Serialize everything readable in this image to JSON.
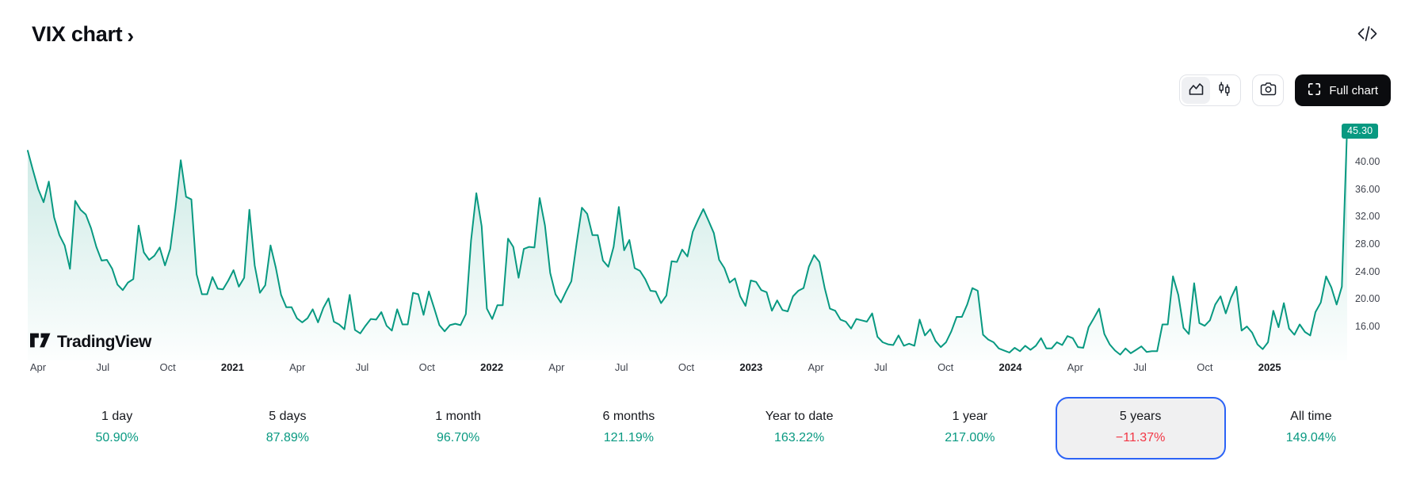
{
  "header": {
    "title": "VIX chart",
    "chevron": "›",
    "code_icon": "code-icon"
  },
  "toolbar": {
    "chart_type_options": [
      "area",
      "candles"
    ],
    "chart_type_selected": "area",
    "full_chart_label": "Full chart",
    "icons": [
      "area-chart-icon",
      "candlestick-icon",
      "camera-icon",
      "fullscreen-icon"
    ]
  },
  "watermark": {
    "brand": "TradingView"
  },
  "chart_data": {
    "type": "area",
    "symbol": "VIX",
    "period_shown": "5 years (Apr 2020 – Apr 2025), weekly points",
    "last_price_label": "45.30",
    "line_color": "#089981",
    "badge_color": "#089981",
    "ylim": [
      11.15,
      48.3
    ],
    "y_ticks": [
      {
        "label": "40.00",
        "value": 40
      },
      {
        "label": "36.00",
        "value": 36
      },
      {
        "label": "32.00",
        "value": 32
      },
      {
        "label": "28.00",
        "value": 28
      },
      {
        "label": "24.00",
        "value": 24
      },
      {
        "label": "20.00",
        "value": 20
      },
      {
        "label": "16.00",
        "value": 16
      }
    ],
    "x_ticks": [
      {
        "label": "Apr",
        "year": false
      },
      {
        "label": "Jul",
        "year": false
      },
      {
        "label": "Oct",
        "year": false
      },
      {
        "label": "2021",
        "year": true
      },
      {
        "label": "Apr",
        "year": false
      },
      {
        "label": "Jul",
        "year": false
      },
      {
        "label": "Oct",
        "year": false
      },
      {
        "label": "2022",
        "year": true
      },
      {
        "label": "Apr",
        "year": false
      },
      {
        "label": "Jul",
        "year": false
      },
      {
        "label": "Oct",
        "year": false
      },
      {
        "label": "2023",
        "year": true
      },
      {
        "label": "Apr",
        "year": false
      },
      {
        "label": "Jul",
        "year": false
      },
      {
        "label": "Oct",
        "year": false
      },
      {
        "label": "2024",
        "year": true
      },
      {
        "label": "Apr",
        "year": false
      },
      {
        "label": "Jul",
        "year": false
      },
      {
        "label": "Oct",
        "year": false
      },
      {
        "label": "2025",
        "year": true
      }
    ],
    "values": [
      41.7,
      38.8,
      36.1,
      34.2,
      37.2,
      32.0,
      29.4,
      27.9,
      24.5,
      34.4,
      33.1,
      32.4,
      30.4,
      27.7,
      25.7,
      25.8,
      24.5,
      22.2,
      21.4,
      22.5,
      23.0,
      30.8,
      26.9,
      25.8,
      26.4,
      27.6,
      25.0,
      27.4,
      33.4,
      40.3,
      35.0,
      34.6,
      23.7,
      20.8,
      20.8,
      23.3,
      21.6,
      21.5,
      22.8,
      24.3,
      21.9,
      23.2,
      33.1,
      25.0,
      21.0,
      22.1,
      27.9,
      24.7,
      20.7,
      18.9,
      18.9,
      17.3,
      16.7,
      17.3,
      18.6,
      16.7,
      18.8,
      20.2,
      16.8,
      16.4,
      15.7,
      20.7,
      15.6,
      15.1,
      16.2,
      17.2,
      17.1,
      18.2,
      16.2,
      15.5,
      18.6,
      16.4,
      16.4,
      21.0,
      20.8,
      17.8,
      21.2,
      18.8,
      16.3,
      15.4,
      16.3,
      16.5,
      16.3,
      17.9,
      28.6,
      35.5,
      30.7,
      18.7,
      17.2,
      19.2,
      19.2,
      28.9,
      27.7,
      23.2,
      27.4,
      27.7,
      27.6,
      34.8,
      30.8,
      23.9,
      20.8,
      19.6,
      21.2,
      22.7,
      28.2,
      33.4,
      32.5,
      29.4,
      29.4,
      25.7,
      24.8,
      27.7,
      33.5,
      27.2,
      28.7,
      24.6,
      24.2,
      23.0,
      21.3,
      21.2,
      19.5,
      20.6,
      25.6,
      25.5,
      27.3,
      26.3,
      29.9,
      31.6,
      33.2,
      31.5,
      29.7,
      25.8,
      24.6,
      22.5,
      23.1,
      20.5,
      19.1,
      22.8,
      22.6,
      21.4,
      21.1,
      18.4,
      19.9,
      18.5,
      18.3,
      20.5,
      21.3,
      21.7,
      24.8,
      26.5,
      25.5,
      21.7,
      18.7,
      18.4,
      17.1,
      16.8,
      15.8,
      17.2,
      17.0,
      16.8,
      18.0,
      14.6,
      13.8,
      13.5,
      13.4,
      14.8,
      13.3,
      13.6,
      13.3,
      17.1,
      14.8,
      15.7,
      14.0,
      13.1,
      13.8,
      15.4,
      17.5,
      17.5,
      19.3,
      21.7,
      21.3,
      14.9,
      14.2,
      13.8,
      12.9,
      12.6,
      12.3,
      13.0,
      12.5,
      13.3,
      12.7,
      13.3,
      14.4,
      12.9,
      12.9,
      13.8,
      13.4,
      14.7,
      14.4,
      13.1,
      13.0,
      16.0,
      17.3,
      18.7,
      15.0,
      13.5,
      12.6,
      12.0,
      12.9,
      12.2,
      12.7,
      13.2,
      12.4,
      12.5,
      12.5,
      16.4,
      16.4,
      23.4,
      20.7,
      15.9,
      15.0,
      22.4,
      16.6,
      16.2,
      17.0,
      19.3,
      20.5,
      18.0,
      20.3,
      21.9,
      15.5,
      16.1,
      15.2,
      13.5,
      12.8,
      13.8,
      18.4,
      16.0,
      19.5,
      15.8,
      14.9,
      16.4,
      15.3,
      14.8,
      18.2,
      19.6,
      23.4,
      21.8,
      19.3,
      21.9,
      45.3
    ]
  },
  "ranges": [
    {
      "label": "1 day",
      "change": "50.90%",
      "direction": "up",
      "selected": false
    },
    {
      "label": "5 days",
      "change": "87.89%",
      "direction": "up",
      "selected": false
    },
    {
      "label": "1 month",
      "change": "96.70%",
      "direction": "up",
      "selected": false
    },
    {
      "label": "6 months",
      "change": "121.19%",
      "direction": "up",
      "selected": false
    },
    {
      "label": "Year to date",
      "change": "163.22%",
      "direction": "up",
      "selected": false
    },
    {
      "label": "1 year",
      "change": "217.00%",
      "direction": "up",
      "selected": false
    },
    {
      "label": "5 years",
      "change": "−11.37%",
      "direction": "down",
      "selected": true
    },
    {
      "label": "All time",
      "change": "149.04%",
      "direction": "up",
      "selected": false
    }
  ]
}
